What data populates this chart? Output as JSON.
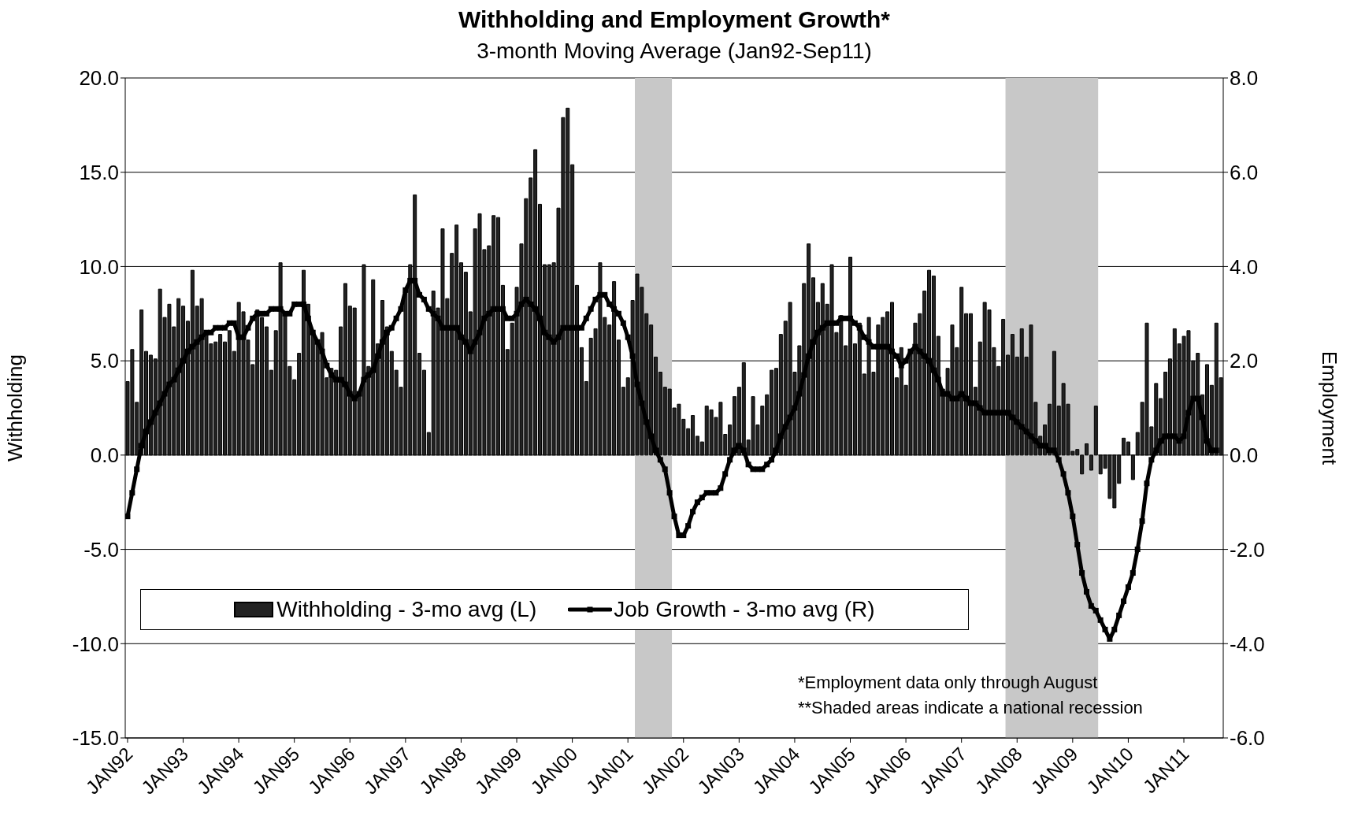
{
  "chart_data": {
    "type": "bar",
    "title": "Withholding and Employment Growth*",
    "subtitle": "3-month Moving Average (Jan92-Sep11)",
    "ylabel": "Withholding",
    "y2label": "Employment",
    "x": [
      "1992-01",
      "1992-02",
      "1992-03",
      "1992-04",
      "1992-05",
      "1992-06",
      "1992-07",
      "1992-08",
      "1992-09",
      "1992-10",
      "1992-11",
      "1992-12",
      "1993-01",
      "1993-02",
      "1993-03",
      "1993-04",
      "1993-05",
      "1993-06",
      "1993-07",
      "1993-08",
      "1993-09",
      "1993-10",
      "1993-11",
      "1993-12",
      "1994-01",
      "1994-02",
      "1994-03",
      "1994-04",
      "1994-05",
      "1994-06",
      "1994-07",
      "1994-08",
      "1994-09",
      "1994-10",
      "1994-11",
      "1994-12",
      "1995-01",
      "1995-02",
      "1995-03",
      "1995-04",
      "1995-05",
      "1995-06",
      "1995-07",
      "1995-08",
      "1995-09",
      "1995-10",
      "1995-11",
      "1995-12",
      "1996-01",
      "1996-02",
      "1996-03",
      "1996-04",
      "1996-05",
      "1996-06",
      "1996-07",
      "1996-08",
      "1996-09",
      "1996-10",
      "1996-11",
      "1996-12",
      "1997-01",
      "1997-02",
      "1997-03",
      "1997-04",
      "1997-05",
      "1997-06",
      "1997-07",
      "1997-08",
      "1997-09",
      "1997-10",
      "1997-11",
      "1997-12",
      "1998-01",
      "1998-02",
      "1998-03",
      "1998-04",
      "1998-05",
      "1998-06",
      "1998-07",
      "1998-08",
      "1998-09",
      "1998-10",
      "1998-11",
      "1998-12",
      "1999-01",
      "1999-02",
      "1999-03",
      "1999-04",
      "1999-05",
      "1999-06",
      "1999-07",
      "1999-08",
      "1999-09",
      "1999-10",
      "1999-11",
      "1999-12",
      "2000-01",
      "2000-02",
      "2000-03",
      "2000-04",
      "2000-05",
      "2000-06",
      "2000-07",
      "2000-08",
      "2000-09",
      "2000-10",
      "2000-11",
      "2000-12",
      "2001-01",
      "2001-02",
      "2001-03",
      "2001-04",
      "2001-05",
      "2001-06",
      "2001-07",
      "2001-08",
      "2001-09",
      "2001-10",
      "2001-11",
      "2001-12",
      "2002-01",
      "2002-02",
      "2002-03",
      "2002-04",
      "2002-05",
      "2002-06",
      "2002-07",
      "2002-08",
      "2002-09",
      "2002-10",
      "2002-11",
      "2002-12",
      "2003-01",
      "2003-02",
      "2003-03",
      "2003-04",
      "2003-05",
      "2003-06",
      "2003-07",
      "2003-08",
      "2003-09",
      "2003-10",
      "2003-11",
      "2003-12",
      "2004-01",
      "2004-02",
      "2004-03",
      "2004-04",
      "2004-05",
      "2004-06",
      "2004-07",
      "2004-08",
      "2004-09",
      "2004-10",
      "2004-11",
      "2004-12",
      "2005-01",
      "2005-02",
      "2005-03",
      "2005-04",
      "2005-05",
      "2005-06",
      "2005-07",
      "2005-08",
      "2005-09",
      "2005-10",
      "2005-11",
      "2005-12",
      "2006-01",
      "2006-02",
      "2006-03",
      "2006-04",
      "2006-05",
      "2006-06",
      "2006-07",
      "2006-08",
      "2006-09",
      "2006-10",
      "2006-11",
      "2006-12",
      "2007-01",
      "2007-02",
      "2007-03",
      "2007-04",
      "2007-05",
      "2007-06",
      "2007-07",
      "2007-08",
      "2007-09",
      "2007-10",
      "2007-11",
      "2007-12",
      "2008-01",
      "2008-02",
      "2008-03",
      "2008-04",
      "2008-05",
      "2008-06",
      "2008-07",
      "2008-08",
      "2008-09",
      "2008-10",
      "2008-11",
      "2008-12",
      "2009-01",
      "2009-02",
      "2009-03",
      "2009-04",
      "2009-05",
      "2009-06",
      "2009-07",
      "2009-08",
      "2009-09",
      "2009-10",
      "2009-11",
      "2009-12",
      "2010-01",
      "2010-02",
      "2010-03",
      "2010-04",
      "2010-05",
      "2010-06",
      "2010-07",
      "2010-08",
      "2010-09",
      "2010-10",
      "2010-11",
      "2010-12",
      "2011-01",
      "2011-02",
      "2011-03",
      "2011-04",
      "2011-05",
      "2011-06",
      "2011-07",
      "2011-08",
      "2011-09"
    ],
    "series": [
      {
        "name": "Withholding - 3-mo avg (L)",
        "color": "#222222",
        "values": [
          3.9,
          5.6,
          2.8,
          7.7,
          5.5,
          5.3,
          5.1,
          8.8,
          7.3,
          8.0,
          6.8,
          8.3,
          7.9,
          7.1,
          9.8,
          7.9,
          8.3,
          6.6,
          5.9,
          6.0,
          6.4,
          6.0,
          6.6,
          5.5,
          8.1,
          7.6,
          6.1,
          4.8,
          7.7,
          7.3,
          6.8,
          4.5,
          6.6,
          10.2,
          7.5,
          4.7,
          4.0,
          5.4,
          9.8,
          8.0,
          6.5,
          5.9,
          6.5,
          4.1,
          4.6,
          4.5,
          6.8,
          9.1,
          7.9,
          7.8,
          3.2,
          10.1,
          4.7,
          9.3,
          5.9,
          8.2,
          6.8,
          5.5,
          4.5,
          3.6,
          8.8,
          10.1,
          13.8,
          5.4,
          4.5,
          1.2,
          8.7,
          7.8,
          12.0,
          8.3,
          10.7,
          12.2,
          10.2,
          9.7,
          7.6,
          12.0,
          12.8,
          10.9,
          11.1,
          12.7,
          12.6,
          9.0,
          5.6,
          7.0,
          8.9,
          11.2,
          13.6,
          14.7,
          16.2,
          13.3,
          10.1,
          10.1,
          10.2,
          13.1,
          17.9,
          18.4,
          15.4,
          9.0,
          5.7,
          3.9,
          6.2,
          6.7,
          10.2,
          7.3,
          6.9,
          9.2,
          6.1,
          3.6,
          4.1,
          8.2,
          9.6,
          8.9,
          7.5,
          6.9,
          5.2,
          4.4,
          3.6,
          3.5,
          2.5,
          2.7,
          1.9,
          1.4,
          2.1,
          1.0,
          0.7,
          2.6,
          2.4,
          2.0,
          2.8,
          1.1,
          1.6,
          3.1,
          3.6,
          4.9,
          0.8,
          3.1,
          1.6,
          2.6,
          3.2,
          4.5,
          4.6,
          6.4,
          7.1,
          8.1,
          4.4,
          5.8,
          9.1,
          11.2,
          9.4,
          8.1,
          9.1,
          8.0,
          10.1,
          6.5,
          7.4,
          5.8,
          10.5,
          5.9,
          7.0,
          4.3,
          7.3,
          4.4,
          6.9,
          7.3,
          7.6,
          8.1,
          4.1,
          5.7,
          3.7,
          5.4,
          7.0,
          7.5,
          8.7,
          9.8,
          9.5,
          6.3,
          3.5,
          4.6,
          6.9,
          5.7,
          8.9,
          7.5,
          7.5,
          3.6,
          6.0,
          8.1,
          7.7,
          5.7,
          4.7,
          7.2,
          5.3,
          6.4,
          5.2,
          6.7,
          5.2,
          6.9,
          2.8,
          1.0,
          1.6,
          2.7,
          5.5,
          2.6,
          3.8,
          2.7,
          0.2,
          0.3,
          -1.0,
          0.6,
          -0.8,
          2.6,
          -1.0,
          -0.7,
          -2.3,
          -2.8,
          -1.5,
          0.9,
          0.7,
          -1.3,
          1.2,
          2.8,
          7.0,
          1.5,
          3.8,
          3.0,
          4.4,
          5.1,
          6.7,
          5.9,
          6.3,
          6.6,
          5.0,
          5.4,
          3.2,
          4.8,
          3.7,
          7.0,
          4.1
        ]
      },
      {
        "name": "Job Growth - 3-mo avg (R)",
        "type": "line",
        "axis": "y2",
        "color": "#000000",
        "marker": "square",
        "line_style": "solid",
        "values": [
          -1.3,
          -0.8,
          -0.3,
          0.2,
          0.5,
          0.7,
          0.9,
          1.1,
          1.3,
          1.5,
          1.6,
          1.8,
          2.0,
          2.2,
          2.3,
          2.4,
          2.5,
          2.6,
          2.6,
          2.7,
          2.7,
          2.7,
          2.8,
          2.8,
          2.5,
          2.5,
          2.7,
          2.9,
          3.0,
          3.0,
          3.0,
          3.1,
          3.1,
          3.1,
          3.0,
          3.0,
          3.2,
          3.2,
          3.2,
          2.9,
          2.6,
          2.4,
          2.2,
          1.9,
          1.7,
          1.6,
          1.6,
          1.5,
          1.3,
          1.2,
          1.3,
          1.6,
          1.7,
          1.8,
          2.1,
          2.4,
          2.6,
          2.7,
          2.9,
          3.1,
          3.5,
          3.7,
          3.7,
          3.4,
          3.3,
          3.1,
          3.0,
          2.9,
          2.7,
          2.7,
          2.7,
          2.7,
          2.5,
          2.4,
          2.2,
          2.4,
          2.6,
          2.9,
          3.0,
          3.1,
          3.1,
          3.1,
          2.9,
          2.9,
          3.0,
          3.2,
          3.3,
          3.2,
          3.1,
          2.9,
          2.6,
          2.5,
          2.4,
          2.5,
          2.7,
          2.7,
          2.7,
          2.7,
          2.7,
          2.9,
          3.1,
          3.3,
          3.4,
          3.4,
          3.2,
          3.1,
          3.0,
          2.8,
          2.5,
          2.1,
          1.5,
          1.1,
          0.7,
          0.4,
          0.1,
          -0.1,
          -0.3,
          -0.8,
          -1.3,
          -1.7,
          -1.7,
          -1.5,
          -1.2,
          -1.0,
          -0.9,
          -0.8,
          -0.8,
          -0.8,
          -0.7,
          -0.4,
          -0.1,
          0.1,
          0.2,
          0.1,
          -0.2,
          -0.3,
          -0.3,
          -0.3,
          -0.2,
          -0.1,
          0.1,
          0.4,
          0.6,
          0.8,
          1.0,
          1.3,
          1.7,
          2.1,
          2.4,
          2.6,
          2.7,
          2.8,
          2.8,
          2.8,
          2.9,
          2.9,
          2.9,
          2.8,
          2.7,
          2.5,
          2.4,
          2.3,
          2.3,
          2.3,
          2.3,
          2.2,
          2.1,
          1.9,
          2.0,
          2.2,
          2.3,
          2.2,
          2.1,
          2.0,
          1.8,
          1.6,
          1.3,
          1.3,
          1.2,
          1.2,
          1.3,
          1.2,
          1.1,
          1.1,
          1.0,
          0.9,
          0.9,
          0.9,
          0.9,
          0.9,
          0.9,
          0.8,
          0.7,
          0.6,
          0.5,
          0.4,
          0.3,
          0.2,
          0.2,
          0.1,
          0.1,
          -0.1,
          -0.4,
          -0.8,
          -1.3,
          -1.9,
          -2.5,
          -2.9,
          -3.2,
          -3.3,
          -3.5,
          -3.7,
          -3.9,
          -3.7,
          -3.4,
          -3.1,
          -2.8,
          -2.5,
          -2.0,
          -1.4,
          -0.6,
          -0.1,
          0.1,
          0.3,
          0.4,
          0.4,
          0.4,
          0.3,
          0.4,
          0.9,
          1.2,
          1.2,
          0.8,
          0.3,
          0.1,
          0.1,
          null
        ]
      }
    ],
    "xlim": [
      "1992-01",
      "2011-09"
    ],
    "xticks": [
      {
        "value": "1992-01",
        "label": "JAN92"
      },
      {
        "value": "1993-01",
        "label": "JAN93"
      },
      {
        "value": "1994-01",
        "label": "JAN94"
      },
      {
        "value": "1995-01",
        "label": "JAN95"
      },
      {
        "value": "1996-01",
        "label": "JAN96"
      },
      {
        "value": "1997-01",
        "label": "JAN97"
      },
      {
        "value": "1998-01",
        "label": "JAN98"
      },
      {
        "value": "1999-01",
        "label": "JAN99"
      },
      {
        "value": "2000-01",
        "label": "JAN00"
      },
      {
        "value": "2001-01",
        "label": "JAN01"
      },
      {
        "value": "2002-01",
        "label": "JAN02"
      },
      {
        "value": "2003-01",
        "label": "JAN03"
      },
      {
        "value": "2004-01",
        "label": "JAN04"
      },
      {
        "value": "2005-01",
        "label": "JAN05"
      },
      {
        "value": "2006-01",
        "label": "JAN06"
      },
      {
        "value": "2007-01",
        "label": "JAN07"
      },
      {
        "value": "2008-01",
        "label": "JAN08"
      },
      {
        "value": "2009-01",
        "label": "JAN09"
      },
      {
        "value": "2010-01",
        "label": "JAN10"
      },
      {
        "value": "2011-01",
        "label": "JAN11"
      }
    ],
    "ylim": [
      -15,
      20
    ],
    "yticks": [
      {
        "value": -15,
        "label": "-15.0"
      },
      {
        "value": -10,
        "label": "-10.0"
      },
      {
        "value": -5,
        "label": "-5.0"
      },
      {
        "value": 0,
        "label": "0.0"
      },
      {
        "value": 5,
        "label": "5.0"
      },
      {
        "value": 10,
        "label": "10.0"
      },
      {
        "value": 15,
        "label": "15.0"
      },
      {
        "value": 20,
        "label": "20.0"
      }
    ],
    "y2lim": [
      -6,
      8
    ],
    "y2ticks": [
      {
        "value": -6,
        "label": "-6.0"
      },
      {
        "value": -4,
        "label": "-4.0"
      },
      {
        "value": -2,
        "label": "-2.0"
      },
      {
        "value": 0,
        "label": "0.0"
      },
      {
        "value": 2,
        "label": "2.0"
      },
      {
        "value": 4,
        "label": "4.0"
      },
      {
        "value": 6,
        "label": "6.0"
      },
      {
        "value": 8,
        "label": "8.0"
      }
    ],
    "bands": [
      {
        "axis": "x",
        "from": "2001-03",
        "to": "2001-10",
        "color": "#c8c8c8"
      },
      {
        "axis": "x",
        "from": "2007-11",
        "to": "2009-06",
        "color": "#c8c8c8"
      }
    ],
    "grid": "y",
    "legend": "bottom left",
    "annotations": [
      "*Employment data only through August",
      "**Shaded areas indicate a national recession"
    ]
  }
}
